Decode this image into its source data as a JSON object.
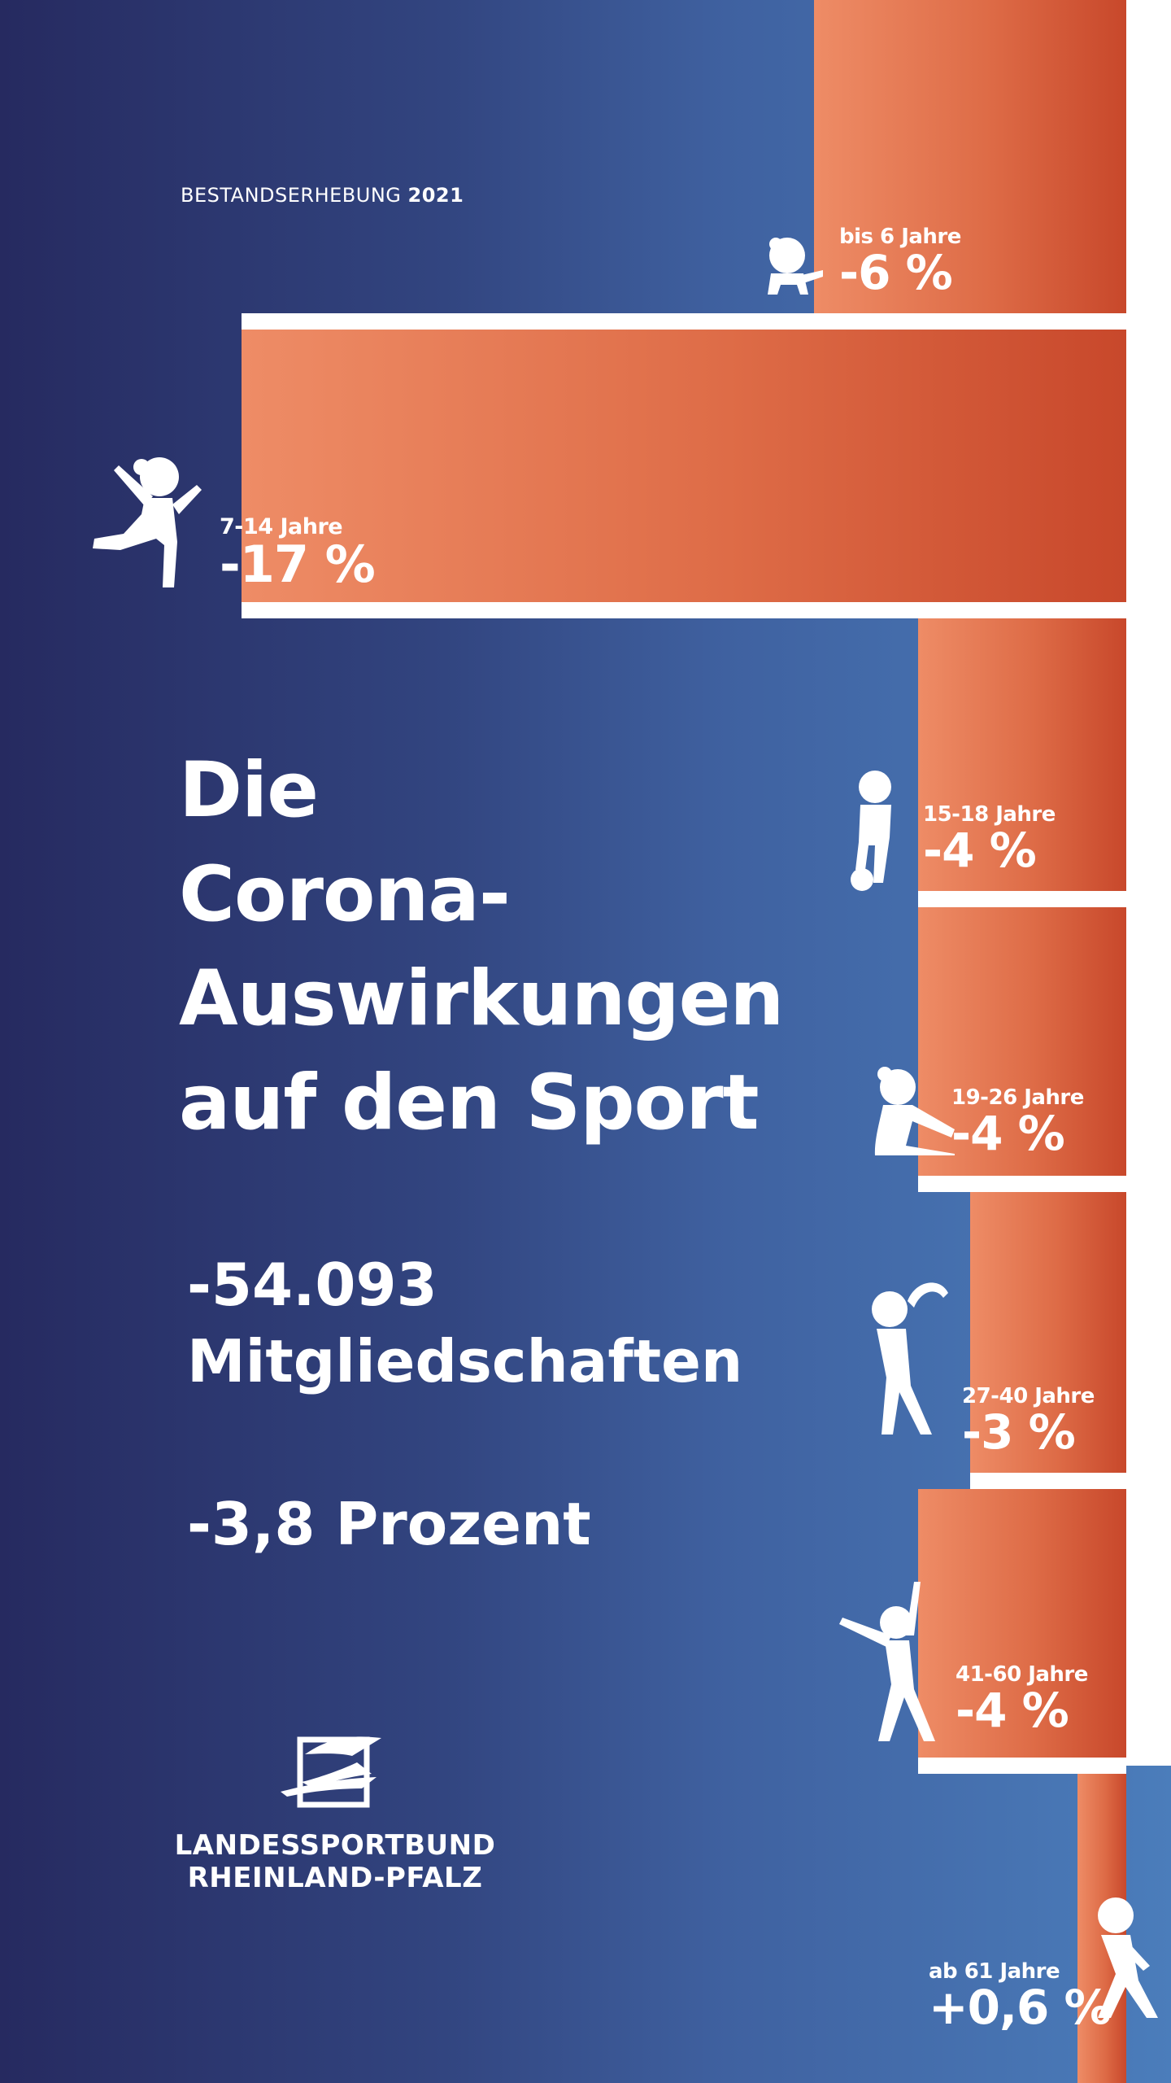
{
  "survey": {
    "label": "BESTANDSERHEBUNG",
    "year": "2021"
  },
  "headline": {
    "line1": "Die",
    "line2": "Corona-",
    "line3": "Auswirkungen",
    "line4": "auf den Sport"
  },
  "summary": {
    "members_value": "-54.093",
    "members_label": "Mitgliedschaften",
    "percent_text": "-3,8 Prozent"
  },
  "logo": {
    "line1": "LANDESSPORTBUND",
    "line2": "RHEINLAND-PFALZ"
  },
  "colors": {
    "bar_light": "#ee8c66",
    "bar_dark": "#c8482b",
    "background_dark": "#262a60",
    "background_light": "#4b7dbb"
  },
  "chart_data": {
    "type": "bar",
    "orientation": "horizontal",
    "categories": [
      "bis 6 Jahre",
      "7-14 Jahre",
      "15-18 Jahre",
      "19-26 Jahre",
      "27-40 Jahre",
      "41-60 Jahre",
      "ab 61 Jahre"
    ],
    "values": [
      -6,
      -17,
      -4,
      -4,
      -3,
      -4,
      0.6
    ],
    "value_labels": [
      "-6 %",
      "-17 %",
      "-4 %",
      "-4 %",
      "-3 %",
      "-4 %",
      "+0,6 %"
    ],
    "unit": "%",
    "icons": [
      "toddler-icon",
      "jumping-child-icon",
      "football-kid-icon",
      "stretching-girl-icon",
      "gymnast-woman-icon",
      "stretching-woman-icon",
      "senior-walker-icon"
    ]
  }
}
